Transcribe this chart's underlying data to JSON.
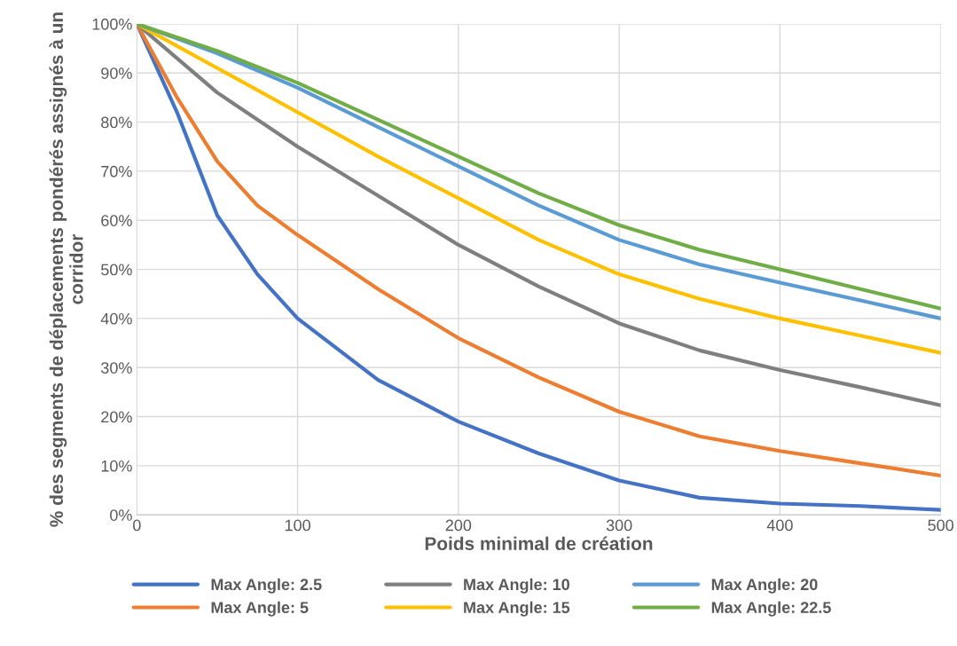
{
  "chart_data": {
    "type": "line",
    "xlabel": "Poids minimal de création",
    "ylabel": "% des segments de déplacements pondérés assignés à un corridor",
    "xlim": [
      0,
      500
    ],
    "xticks": [
      0,
      100,
      200,
      300,
      400,
      500
    ],
    "ylim": [
      0,
      100
    ],
    "yticks": [
      {
        "value": 0,
        "label": "0%"
      },
      {
        "value": 10,
        "label": "10%"
      },
      {
        "value": 20,
        "label": "20%"
      },
      {
        "value": 30,
        "label": "30%"
      },
      {
        "value": 40,
        "label": "40%"
      },
      {
        "value": 50,
        "label": "50%"
      },
      {
        "value": 60,
        "label": "60%"
      },
      {
        "value": 70,
        "label": "70%"
      },
      {
        "value": 80,
        "label": "80%"
      },
      {
        "value": 90,
        "label": "90%"
      },
      {
        "value": 100,
        "label": "100%"
      }
    ],
    "grid": true,
    "legend": "bottom",
    "marker": "none",
    "line_style": "solid",
    "series": [
      {
        "name": "Max Angle: 2.5",
        "color": "#4472c4",
        "x": [
          0,
          25,
          50,
          75,
          100,
          150,
          200,
          250,
          300,
          350,
          400,
          450,
          500
        ],
        "values": [
          100,
          82,
          61,
          49,
          40,
          27.5,
          19,
          12.5,
          7,
          3.5,
          2.3,
          1.8,
          1
        ]
      },
      {
        "name": "Max Angle: 5",
        "color": "#ed7d31",
        "x": [
          0,
          25,
          50,
          75,
          100,
          150,
          200,
          250,
          300,
          350,
          400,
          450,
          500
        ],
        "values": [
          100,
          85,
          72,
          63,
          57,
          46,
          36,
          28,
          21,
          16,
          13,
          10.5,
          8
        ]
      },
      {
        "name": "Max Angle: 10",
        "color": "#7f7f7f",
        "x": [
          0,
          50,
          100,
          150,
          200,
          250,
          300,
          350,
          400,
          450,
          500
        ],
        "values": [
          100,
          86,
          75,
          65,
          55,
          46.5,
          39,
          33.5,
          29.5,
          26,
          22.3
        ]
      },
      {
        "name": "Max Angle: 15",
        "color": "#ffc000",
        "x": [
          0,
          50,
          100,
          150,
          200,
          250,
          300,
          350,
          400,
          450,
          500
        ],
        "values": [
          100,
          91,
          82,
          73,
          64.5,
          56,
          49,
          44,
          40,
          36.5,
          33
        ]
      },
      {
        "name": "Max Angle: 20",
        "color": "#5b9bd5",
        "x": [
          0,
          50,
          100,
          150,
          200,
          250,
          300,
          350,
          400,
          450,
          500
        ],
        "values": [
          100,
          94,
          87,
          79,
          71,
          63,
          56,
          51,
          47.3,
          43.7,
          40
        ]
      },
      {
        "name": "Max Angle: 22.5",
        "color": "#70ad47",
        "x": [
          0,
          50,
          100,
          150,
          200,
          250,
          300,
          350,
          400,
          450,
          500
        ],
        "values": [
          100,
          94.5,
          88,
          80.5,
          73,
          65.5,
          59,
          54,
          50,
          46,
          42
        ]
      }
    ]
  }
}
